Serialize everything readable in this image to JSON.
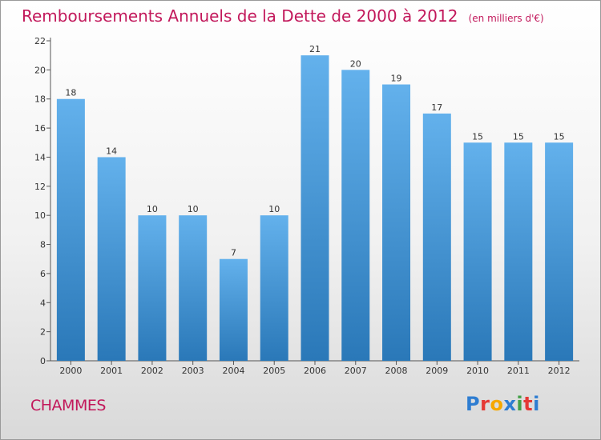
{
  "header": {
    "title": "Remboursements Annuels de la Dette de 2000 à 2012",
    "unit": "(en milliers d'€)"
  },
  "footer": {
    "commune": "CHAMMES",
    "logo": "Proxiti"
  },
  "logo_colors": [
    "#2e7dd1",
    "#e53935",
    "#f6a800",
    "#2e7dd1",
    "#43a047",
    "#e53935",
    "#2e7dd1"
  ],
  "colors": {
    "title": "#c2185b",
    "bar_top": "#63b1ec",
    "bar_bottom": "#2a78b8",
    "axis": "#555555"
  },
  "chart_data": {
    "type": "bar",
    "title": "Remboursements Annuels de la Dette de 2000 à 2012",
    "categories": [
      "2000",
      "2001",
      "2002",
      "2003",
      "2004",
      "2005",
      "2006",
      "2007",
      "2008",
      "2009",
      "2010",
      "2011",
      "2012"
    ],
    "values": [
      18,
      14,
      10,
      10,
      7,
      10,
      21,
      20,
      19,
      17,
      15,
      15,
      15
    ],
    "ylim": [
      0,
      22
    ],
    "yticks": [
      0,
      2,
      4,
      6,
      8,
      10,
      12,
      14,
      16,
      18,
      20,
      22
    ],
    "xlabel": "",
    "ylabel": "",
    "grid": false,
    "legend": "none"
  }
}
